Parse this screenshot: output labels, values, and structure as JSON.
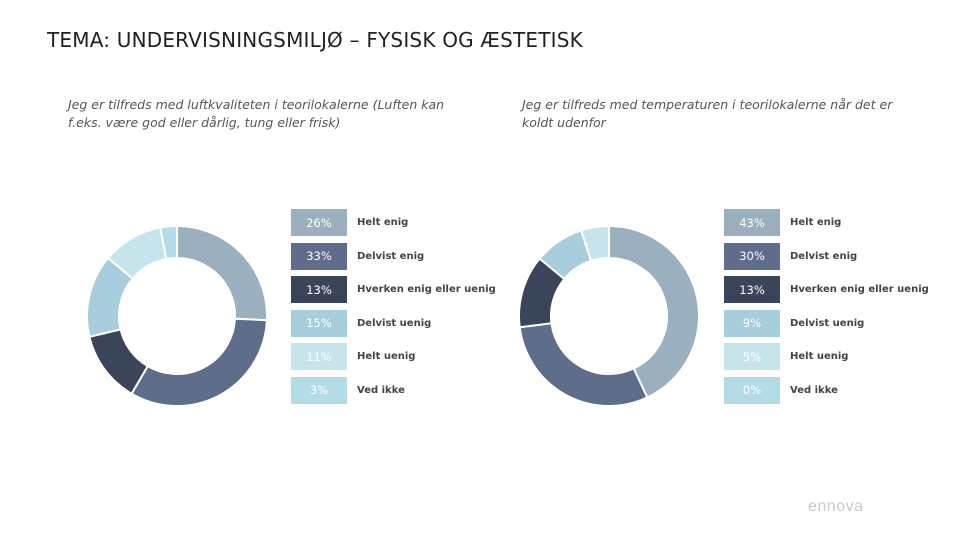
{
  "page": {
    "title": "TEMA: UNDERVISNINGSMILJØ – FYSISK OG ÆSTETISK",
    "brand": "ennova"
  },
  "colors": [
    "#9AB0BE",
    "#5D6D8A",
    "#3A4559",
    "#A8CEDD",
    "#C5E4EC",
    "#B3DCE7"
  ],
  "label_colors": [
    "#ffffff",
    "#ffffff",
    "#ffffff",
    "#ffffff",
    "#ffffff",
    "#ffffff"
  ],
  "chart_data": [
    {
      "type": "pie",
      "donut": true,
      "title": "Jeg er tilfreds med luftkvaliteten i teorilokalerne (Luften kan f.eks. være god eller dårlig, tung eller frisk)",
      "categories": [
        "Helt enig",
        "Delvist enig",
        "Hverken enig eller uenig",
        "Delvist uenig",
        "Helt uenig",
        "Ved ikke"
      ],
      "values": [
        26,
        33,
        13,
        15,
        11,
        3
      ],
      "labels": [
        "26%",
        "33%",
        "13%",
        "15%",
        "11%",
        "3%"
      ],
      "legend_position": "right"
    },
    {
      "type": "pie",
      "donut": true,
      "title": "Jeg er tilfreds med temperaturen i teorilokalerne når det er koldt udenfor",
      "categories": [
        "Helt enig",
        "Delvist enig",
        "Hverken enig eller uenig",
        "Delvist uenig",
        "Helt uenig",
        "Ved ikke"
      ],
      "values": [
        43,
        30,
        13,
        9,
        5,
        0
      ],
      "labels": [
        "43%",
        "30%",
        "13%",
        "9%",
        "5%",
        "0%"
      ],
      "legend_position": "right"
    }
  ]
}
